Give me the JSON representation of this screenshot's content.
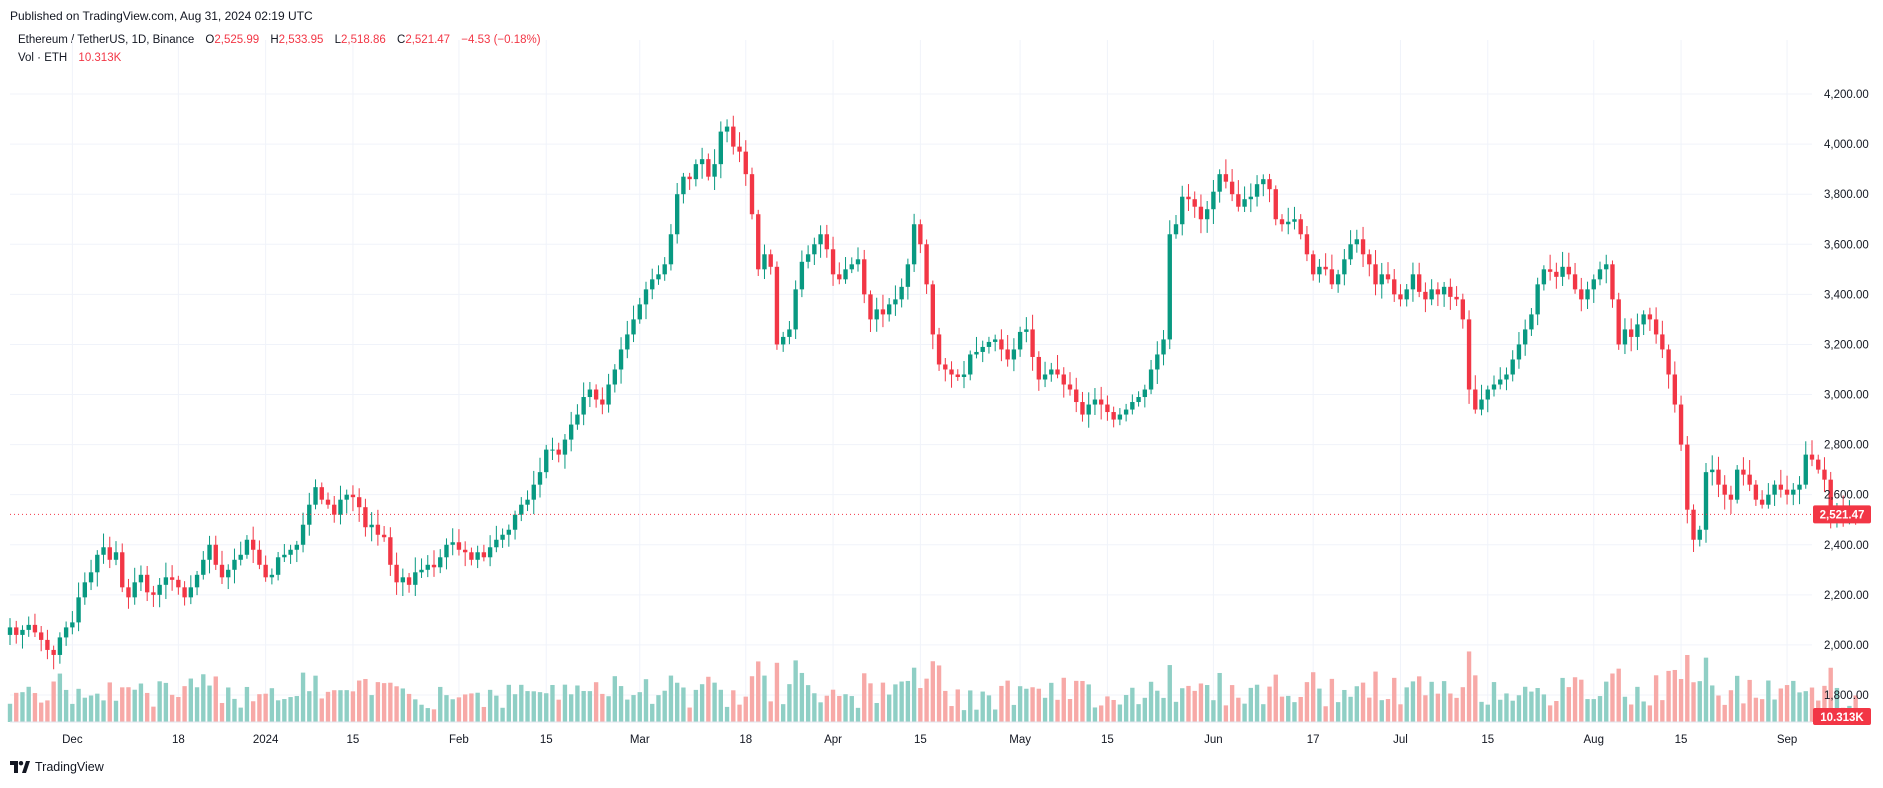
{
  "header": {
    "published": "Published on TradingView.com, Aug 31, 2024 02:19 UTC"
  },
  "legend": {
    "symbol": "Ethereum / TetherUS, 1D, Binance",
    "o_label": "O",
    "o_value": "2,525.99",
    "h_label": "H",
    "h_value": "2,533.95",
    "l_label": "L",
    "l_value": "2,518.86",
    "c_label": "C",
    "c_value": "2,521.47",
    "change": "−4.53 (−0.18%)",
    "vol_label": "Vol · ETH",
    "vol_value": "10.313K"
  },
  "footer": {
    "brand": "TradingView"
  },
  "colors": {
    "up": "#089981",
    "down": "#f23645",
    "up_vol": "#8fcfc5",
    "down_vol": "#f7a9a7",
    "grid": "#f0f3fa",
    "text": "#131722"
  },
  "chart_data": {
    "type": "candlestick",
    "symbol": "ETHUSDT",
    "interval": "1D",
    "x_range": [
      "2023-11-21",
      "2024-09-05"
    ],
    "ylim": [
      1800,
      4300
    ],
    "y_ticks": [
      1800,
      2000,
      2200,
      2400,
      2600,
      2800,
      3000,
      3200,
      3400,
      3600,
      3800,
      4000,
      4200
    ],
    "y_tick_labels": [
      "1,800.00",
      "2,000.00",
      "2,200.00",
      "2,400.00",
      "2,600.00",
      "2,800.00",
      "3,000.00",
      "3,200.00",
      "3,400.00",
      "3,600.00",
      "3,800.00",
      "4,000.00",
      "4,200.00"
    ],
    "x_ticks": [
      {
        "date": "2023-12-01",
        "label": "Dec"
      },
      {
        "date": "2023-12-18",
        "label": "18"
      },
      {
        "date": "2024-01-01",
        "label": "2024"
      },
      {
        "date": "2024-01-15",
        "label": "15"
      },
      {
        "date": "2024-02-01",
        "label": "Feb"
      },
      {
        "date": "2024-02-15",
        "label": "15"
      },
      {
        "date": "2024-03-01",
        "label": "Mar"
      },
      {
        "date": "2024-03-18",
        "label": "18"
      },
      {
        "date": "2024-04-01",
        "label": "Apr"
      },
      {
        "date": "2024-04-15",
        "label": "15"
      },
      {
        "date": "2024-05-01",
        "label": "May"
      },
      {
        "date": "2024-05-15",
        "label": "15"
      },
      {
        "date": "2024-06-01",
        "label": "Jun"
      },
      {
        "date": "2024-06-17",
        "label": "17"
      },
      {
        "date": "2024-07-01",
        "label": "Jul"
      },
      {
        "date": "2024-07-15",
        "label": "15"
      },
      {
        "date": "2024-08-01",
        "label": "Aug"
      },
      {
        "date": "2024-08-15",
        "label": "15"
      },
      {
        "date": "2024-09-01",
        "label": "Sep"
      }
    ],
    "last_price": 2521.47,
    "last_price_label": "2,521.47",
    "last_volume_label": "10.313K",
    "start_date": "2023-11-21",
    "candles_close": [
      2070,
      2040,
      2060,
      2080,
      2050,
      2020,
      1980,
      1960,
      2030,
      2070,
      2090,
      2190,
      2250,
      2290,
      2360,
      2390,
      2340,
      2370,
      2230,
      2190,
      2250,
      2280,
      2210,
      2200,
      2240,
      2270,
      2260,
      2230,
      2190,
      2230,
      2280,
      2340,
      2400,
      2320,
      2270,
      2300,
      2340,
      2360,
      2420,
      2380,
      2320,
      2270,
      2280,
      2350,
      2360,
      2380,
      2400,
      2480,
      2560,
      2630,
      2580,
      2560,
      2520,
      2580,
      2600,
      2590,
      2550,
      2470,
      2480,
      2440,
      2430,
      2320,
      2250,
      2270,
      2240,
      2290,
      2300,
      2320,
      2310,
      2350,
      2400,
      2410,
      2380,
      2370,
      2340,
      2370,
      2350,
      2390,
      2420,
      2440,
      2460,
      2520,
      2560,
      2580,
      2640,
      2690,
      2780,
      2780,
      2760,
      2820,
      2880,
      2920,
      2990,
      3020,
      2980,
      2960,
      3040,
      3100,
      3180,
      3240,
      3300,
      3360,
      3420,
      3460,
      3480,
      3520,
      3640,
      3800,
      3870,
      3860,
      3920,
      3940,
      3870,
      3920,
      4050,
      4070,
      3990,
      3970,
      3880,
      3720,
      3500,
      3560,
      3510,
      3200,
      3230,
      3260,
      3420,
      3530,
      3560,
      3600,
      3640,
      3580,
      3480,
      3460,
      3500,
      3520,
      3540,
      3400,
      3300,
      3340,
      3320,
      3360,
      3380,
      3430,
      3520,
      3680,
      3600,
      3440,
      3240,
      3120,
      3100,
      3080,
      3070,
      3080,
      3160,
      3170,
      3190,
      3210,
      3220,
      3180,
      3140,
      3180,
      3250,
      3260,
      3150,
      3060,
      3080,
      3100,
      3080,
      3040,
      3020,
      2970,
      2920,
      2960,
      2980,
      2960,
      2930,
      2900,
      2920,
      2940,
      2970,
      2990,
      3020,
      3100,
      3160,
      3220,
      3640,
      3680,
      3790,
      3780,
      3750,
      3700,
      3740,
      3810,
      3880,
      3850,
      3800,
      3750,
      3780,
      3790,
      3840,
      3860,
      3820,
      3700,
      3680,
      3690,
      3700,
      3640,
      3560,
      3480,
      3510,
      3500,
      3440,
      3480,
      3540,
      3600,
      3620,
      3560,
      3520,
      3440,
      3480,
      3460,
      3400,
      3380,
      3420,
      3480,
      3410,
      3380,
      3420,
      3400,
      3430,
      3390,
      3380,
      3300,
      3020,
      2940,
      2980,
      3020,
      3040,
      3060,
      3080,
      3140,
      3200,
      3260,
      3320,
      3440,
      3500,
      3490,
      3470,
      3510,
      3480,
      3420,
      3380,
      3420,
      3460,
      3500,
      3520,
      3380,
      3200,
      3260,
      3230,
      3280,
      3320,
      3300,
      3240,
      3180,
      3080,
      2960,
      2800,
      2540,
      2420,
      2460,
      2690,
      2700,
      2640,
      2600,
      2580,
      2700,
      2680,
      2640,
      2580,
      2560,
      2600,
      2640,
      2620,
      2600,
      2620,
      2640,
      2760,
      2740,
      2700,
      2660,
      2520,
      2540,
      2530,
      2530,
      2521
    ],
    "note_ohlc_subset": "last candle O 2525.99 H 2533.95 L 2518.86 C 2521.47"
  }
}
